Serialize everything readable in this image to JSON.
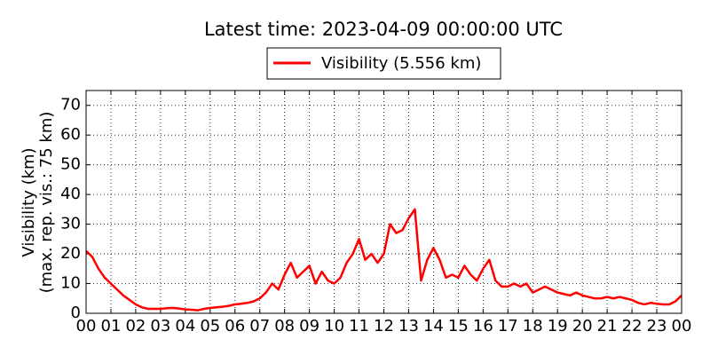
{
  "chart_data": {
    "type": "line",
    "title": "Latest time: 2023-04-09 00:00:00 UTC",
    "y_label": [
      "Visibility (km)",
      "(max. rep. vis.: 75 km)"
    ],
    "x": [
      0,
      0.25,
      0.5,
      0.75,
      1,
      1.25,
      1.5,
      1.75,
      2,
      2.25,
      2.5,
      2.75,
      3,
      3.25,
      3.5,
      3.75,
      4,
      4.25,
      4.5,
      4.75,
      5,
      5.25,
      5.5,
      5.75,
      6,
      6.25,
      6.5,
      6.75,
      7,
      7.25,
      7.5,
      7.75,
      8,
      8.25,
      8.5,
      8.75,
      9,
      9.25,
      9.5,
      9.75,
      10,
      10.25,
      10.5,
      10.75,
      11,
      11.25,
      11.5,
      11.75,
      12,
      12.25,
      12.5,
      12.75,
      13,
      13.25,
      13.5,
      13.75,
      14,
      14.25,
      14.5,
      14.75,
      15,
      15.25,
      15.5,
      15.75,
      16,
      16.25,
      16.5,
      16.75,
      17,
      17.25,
      17.5,
      17.75,
      18,
      18.25,
      18.5,
      18.75,
      19,
      19.25,
      19.5,
      19.75,
      20,
      20.25,
      20.5,
      20.75,
      21,
      21.25,
      21.5,
      21.75,
      22,
      22.25,
      22.5,
      22.75,
      23,
      23.25,
      23.5,
      23.75,
      24
    ],
    "series": [
      {
        "name": "Visibility (5.556 km)",
        "color": "#ff0000",
        "values": [
          21,
          19,
          15,
          12,
          10,
          8,
          6,
          4.5,
          3,
          2,
          1.5,
          1.5,
          1.5,
          1.7,
          1.8,
          1.6,
          1.3,
          1.2,
          1,
          1.5,
          1.8,
          2,
          2.2,
          2.5,
          3,
          3.2,
          3.5,
          4,
          5,
          7,
          10,
          8,
          13,
          17,
          12,
          14,
          16,
          10,
          14,
          11,
          10,
          12,
          17,
          20,
          25,
          18,
          20,
          17,
          20,
          30,
          27,
          28,
          32,
          35,
          11,
          18,
          22,
          18,
          12,
          13,
          12,
          16,
          13,
          11,
          15,
          18,
          11,
          9,
          9,
          10,
          9,
          10,
          7,
          8,
          9,
          8,
          7,
          6.5,
          6,
          7,
          6,
          5.5,
          5,
          5,
          5.5,
          5,
          5.5,
          5,
          4.5,
          3.5,
          3,
          3.5,
          3.2,
          3,
          3,
          4,
          6
        ]
      }
    ],
    "xlim": [
      0,
      24
    ],
    "xticks": [
      {
        "value": 0,
        "label": "00"
      },
      {
        "value": 1,
        "label": "01"
      },
      {
        "value": 2,
        "label": "02"
      },
      {
        "value": 3,
        "label": "03"
      },
      {
        "value": 4,
        "label": "04"
      },
      {
        "value": 5,
        "label": "05"
      },
      {
        "value": 6,
        "label": "06"
      },
      {
        "value": 7,
        "label": "07"
      },
      {
        "value": 8,
        "label": "08"
      },
      {
        "value": 9,
        "label": "09"
      },
      {
        "value": 10,
        "label": "10"
      },
      {
        "value": 11,
        "label": "11"
      },
      {
        "value": 12,
        "label": "12"
      },
      {
        "value": 13,
        "label": "13"
      },
      {
        "value": 14,
        "label": "14"
      },
      {
        "value": 15,
        "label": "15"
      },
      {
        "value": 16,
        "label": "16"
      },
      {
        "value": 17,
        "label": "17"
      },
      {
        "value": 18,
        "label": "18"
      },
      {
        "value": 19,
        "label": "19"
      },
      {
        "value": 20,
        "label": "20"
      },
      {
        "value": 21,
        "label": "21"
      },
      {
        "value": 22,
        "label": "22"
      },
      {
        "value": 23,
        "label": "23"
      },
      {
        "value": 24,
        "label": "00"
      }
    ],
    "ylim": [
      0,
      75
    ],
    "yticks": [
      0,
      10,
      20,
      30,
      40,
      50,
      60,
      70
    ],
    "grid": true
  }
}
